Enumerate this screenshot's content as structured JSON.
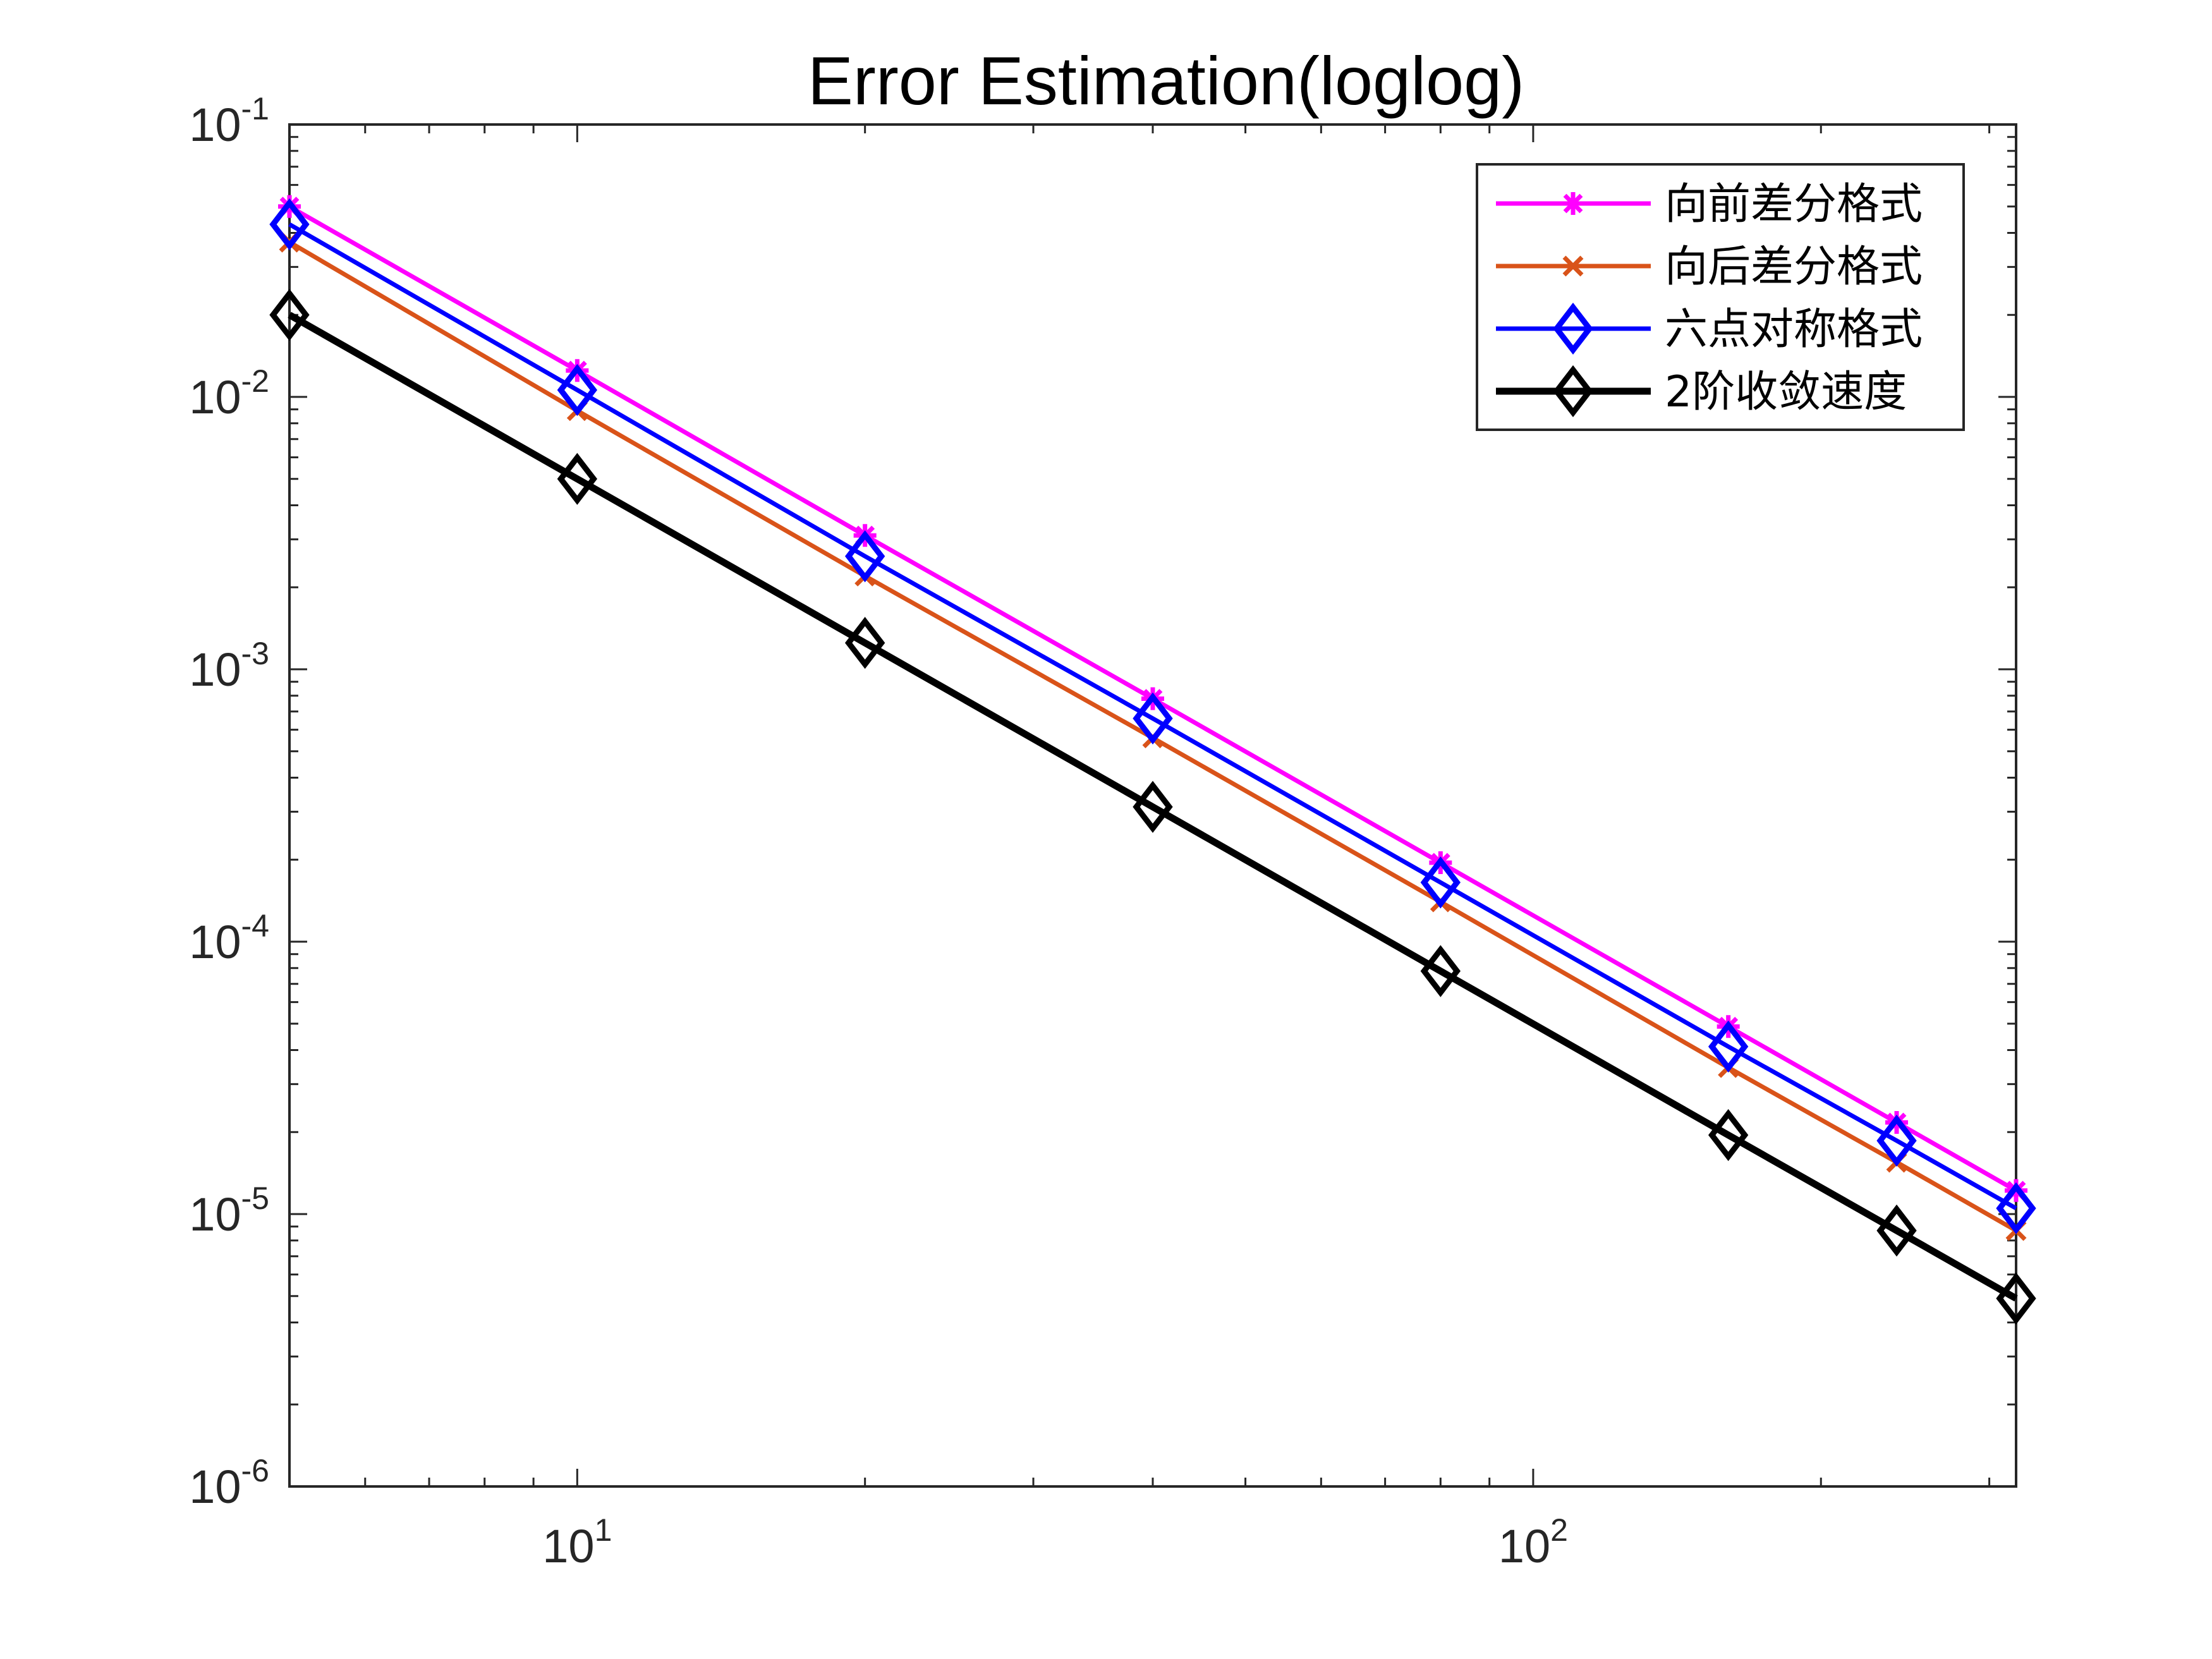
{
  "chart_data": {
    "type": "line",
    "title": "Error Estimation(loglog)",
    "xlabel": "",
    "ylabel": "",
    "xscale": "log",
    "yscale": "log",
    "xlim": [
      5,
      320
    ],
    "ylim": [
      1e-06,
      0.1
    ],
    "x_ticks": [
      {
        "value": 10,
        "base": "10",
        "exp": "1"
      },
      {
        "value": 100,
        "base": "10",
        "exp": "2"
      }
    ],
    "y_ticks": [
      {
        "value": 0.1,
        "base": "10",
        "exp": "-1"
      },
      {
        "value": 0.01,
        "base": "10",
        "exp": "-2"
      },
      {
        "value": 0.001,
        "base": "10",
        "exp": "-3"
      },
      {
        "value": 0.0001,
        "base": "10",
        "exp": "-4"
      },
      {
        "value": 1e-05,
        "base": "10",
        "exp": "-5"
      },
      {
        "value": 1e-06,
        "base": "10",
        "exp": "-6"
      }
    ],
    "grid": false,
    "box": true,
    "legend_position": "top-right",
    "x": [
      5,
      10,
      20,
      40,
      80,
      160,
      240,
      320
    ],
    "series": [
      {
        "name": "向前差分格式",
        "color": "#FF00FF",
        "marker": "asterisk",
        "values": [
          0.05,
          0.0125,
          0.0031,
          0.00078,
          0.000195,
          4.88e-05,
          2.17e-05,
          1.22e-05
        ]
      },
      {
        "name": "向后差分格式",
        "color": "#D95319",
        "marker": "x",
        "values": [
          0.037,
          0.0089,
          0.0022,
          0.00056,
          0.00014,
          3.45e-05,
          1.55e-05,
          8.7e-06
        ]
      },
      {
        "name": "六点对称格式",
        "color": "#0000FF",
        "marker": "diamond",
        "values": [
          0.043,
          0.0106,
          0.0026,
          0.00066,
          0.000165,
          4.12e-05,
          1.86e-05,
          1.05e-05
        ]
      },
      {
        "name": "2阶收敛速度",
        "color": "#000000",
        "marker": "diamond",
        "values": [
          0.02,
          0.005,
          0.00125,
          0.0003125,
          7.8e-05,
          1.95e-05,
          8.7e-06,
          4.9e-06
        ]
      }
    ]
  }
}
